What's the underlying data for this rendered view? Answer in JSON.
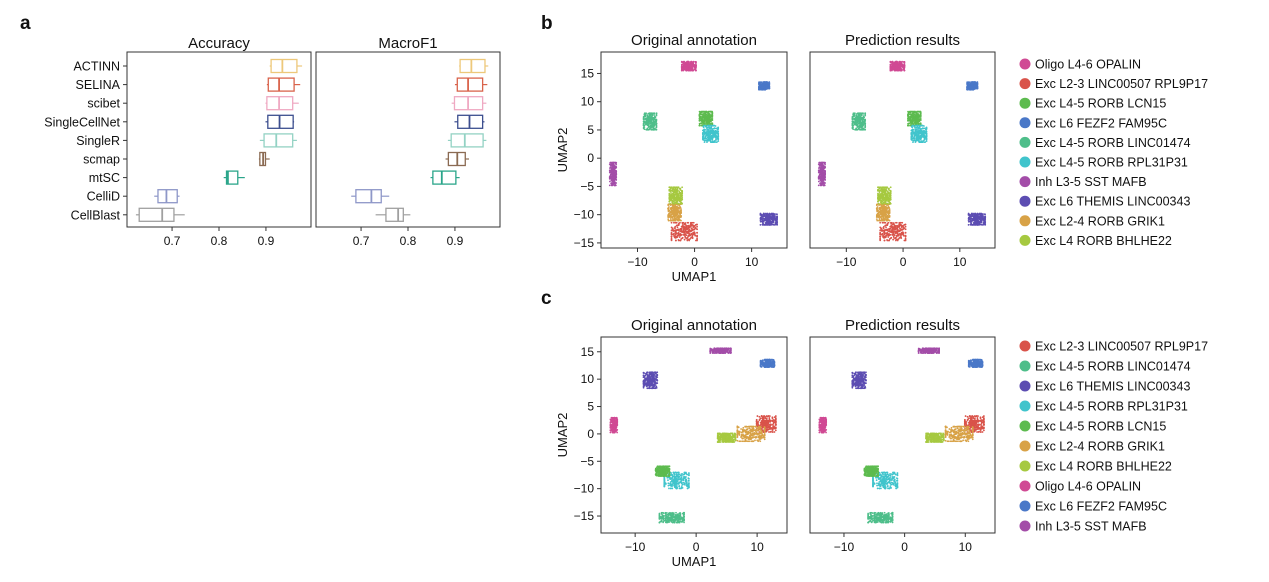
{
  "panel_labels": {
    "a": "a",
    "b": "b",
    "c": "c"
  },
  "chart_data": [
    {
      "type": "boxplot",
      "panel": "a",
      "facets": [
        "Accuracy",
        "MacroF1"
      ],
      "categories": [
        "ACTINN",
        "SELINA",
        "scibet",
        "SingleCellNet",
        "SingleR",
        "scmap",
        "mtSC",
        "CelliD",
        "CellBlast"
      ],
      "colors": [
        "#EDC87A",
        "#D9634B",
        "#EFA9C2",
        "#3D4F8F",
        "#93D2C4",
        "#8A6A52",
        "#2BA58A",
        "#8E97C8",
        "#A0A0A0"
      ],
      "xticks": [
        0.7,
        0.8,
        0.9
      ],
      "xlim": [
        0.604,
        0.996
      ],
      "stats_order": [
        "min",
        "q1",
        "median",
        "q3",
        "max"
      ],
      "series": [
        {
          "name": "Accuracy",
          "values": [
            [
              0.908,
              0.911,
              0.935,
              0.966,
              0.977
            ],
            [
              0.902,
              0.905,
              0.928,
              0.96,
              0.973
            ],
            [
              0.899,
              0.902,
              0.928,
              0.957,
              0.97
            ],
            [
              0.899,
              0.904,
              0.929,
              0.958,
              0.96
            ],
            [
              0.887,
              0.896,
              0.922,
              0.957,
              0.966
            ],
            [
              0.885,
              0.887,
              0.894,
              0.899,
              0.908
            ],
            [
              0.81,
              0.816,
              0.819,
              0.84,
              0.855
            ],
            [
              0.662,
              0.67,
              0.688,
              0.711,
              0.716
            ],
            [
              0.623,
              0.63,
              0.679,
              0.704,
              0.727
            ]
          ]
        },
        {
          "name": "MacroF1",
          "values": [
            [
              0.909,
              0.911,
              0.935,
              0.964,
              0.971
            ],
            [
              0.9,
              0.905,
              0.928,
              0.959,
              0.969
            ],
            [
              0.893,
              0.899,
              0.928,
              0.959,
              0.967
            ],
            [
              0.899,
              0.906,
              0.931,
              0.959,
              0.963
            ],
            [
              0.885,
              0.892,
              0.921,
              0.96,
              0.967
            ],
            [
              0.88,
              0.886,
              0.905,
              0.922,
              0.93
            ],
            [
              0.848,
              0.853,
              0.872,
              0.902,
              0.91
            ],
            [
              0.679,
              0.689,
              0.722,
              0.743,
              0.76
            ],
            [
              0.731,
              0.753,
              0.779,
              0.79,
              0.805
            ]
          ]
        }
      ]
    },
    {
      "type": "scatter",
      "panel": "b",
      "facets": [
        "Original annotation",
        "Prediction results"
      ],
      "xlabel": "UMAP1",
      "ylabel": "UMAP2",
      "xticks": [
        -10,
        0,
        10
      ],
      "yticks": [
        15,
        10,
        5,
        0,
        -5,
        -10,
        -15
      ],
      "xlim": [
        -16.4,
        16.2
      ],
      "ylim": [
        -15.9,
        18.8
      ],
      "legend": [
        {
          "label": "Oligo L4-6 OPALIN",
          "color": "#D04A94",
          "center": [
            -1,
            16.3
          ],
          "spread": [
            1.1,
            0.7
          ]
        },
        {
          "label": "Exc L2-3 LINC00507 RPL9P17",
          "color": "#D9534A",
          "center": [
            -1.8,
            -13
          ],
          "spread": [
            2,
            1.4
          ]
        },
        {
          "label": "Exc L4-5 RORB LCN15",
          "color": "#5DBB4F",
          "center": [
            2,
            7
          ],
          "spread": [
            1,
            1.1
          ]
        },
        {
          "label": "Exc L6 FEZF2 FAM95C",
          "color": "#4A78C8",
          "center": [
            12.2,
            12.8
          ],
          "spread": [
            0.8,
            0.6
          ]
        },
        {
          "label": "Exc L4-5 RORB LINC01474",
          "color": "#4EBE8A",
          "center": [
            -7.8,
            6.5
          ],
          "spread": [
            1,
            1.3
          ]
        },
        {
          "label": "Exc L4-5 RORB RPL31P31",
          "color": "#40C4CC",
          "center": [
            2.8,
            4.3
          ],
          "spread": [
            1.2,
            1.3
          ]
        },
        {
          "label": "Inh L3-5 SST MAFB",
          "color": "#A34DA8",
          "center": [
            -14.3,
            -2.8
          ],
          "spread": [
            0.5,
            1.8
          ]
        },
        {
          "label": "Exc L6 THEMIS LINC00343",
          "color": "#5C4DB2",
          "center": [
            13,
            -10.8
          ],
          "spread": [
            1.3,
            0.9
          ]
        },
        {
          "label": "Exc L2-4 RORB GRIK1",
          "color": "#D8A247",
          "center": [
            -3.5,
            -9.6
          ],
          "spread": [
            1,
            1.3
          ]
        },
        {
          "label": "Exc L4 RORB BHLHE22",
          "color": "#A6C940",
          "center": [
            -3.3,
            -6.6
          ],
          "spread": [
            1,
            1.3
          ]
        }
      ]
    },
    {
      "type": "scatter",
      "panel": "c",
      "facets": [
        "Original annotation",
        "Prediction results"
      ],
      "xlabel": "UMAP1",
      "ylabel": "UMAP2",
      "xticks": [
        -10,
        0,
        10
      ],
      "yticks": [
        15,
        10,
        5,
        0,
        -5,
        -10,
        -15
      ],
      "xlim": [
        -15.6,
        14.9
      ],
      "ylim": [
        -18.1,
        17.7
      ],
      "legend": [
        {
          "label": "Exc L2-3 LINC00507 RPL9P17",
          "color": "#D9534A",
          "center": [
            11.5,
            1.8
          ],
          "spread": [
            1.4,
            1.3
          ]
        },
        {
          "label": "Exc L4-5 RORB LINC01474",
          "color": "#4EBE8A",
          "center": [
            -4,
            -15.3
          ],
          "spread": [
            1.8,
            0.8
          ]
        },
        {
          "label": "Exc L6 THEMIS LINC00343",
          "color": "#5C4DB2",
          "center": [
            -7.5,
            9.8
          ],
          "spread": [
            1,
            1.3
          ]
        },
        {
          "label": "Exc L4-5 RORB RPL31P31",
          "color": "#40C4CC",
          "center": [
            -3.2,
            -8.5
          ],
          "spread": [
            1.8,
            1.3
          ]
        },
        {
          "label": "Exc L4-5 RORB LCN15",
          "color": "#5DBB4F",
          "center": [
            -5.5,
            -6.8
          ],
          "spread": [
            1,
            0.8
          ]
        },
        {
          "label": "Exc L2-4 RORB GRIK1",
          "color": "#D8A247",
          "center": [
            9,
            0
          ],
          "spread": [
            2,
            1.2
          ]
        },
        {
          "label": "Exc L4 RORB BHLHE22",
          "color": "#A6C940",
          "center": [
            5,
            -0.7
          ],
          "spread": [
            1.3,
            0.7
          ]
        },
        {
          "label": "Oligo L4-6 OPALIN",
          "color": "#D04A94",
          "center": [
            -13.5,
            1.6
          ],
          "spread": [
            0.5,
            1.2
          ]
        },
        {
          "label": "Exc L6 FEZF2 FAM95C",
          "color": "#4A78C8",
          "center": [
            11.7,
            12.9
          ],
          "spread": [
            1,
            0.6
          ]
        },
        {
          "label": "Inh L3-5 SST MAFB",
          "color": "#A34DA8",
          "center": [
            4,
            15.2
          ],
          "spread": [
            1.5,
            0.4
          ]
        }
      ]
    }
  ]
}
